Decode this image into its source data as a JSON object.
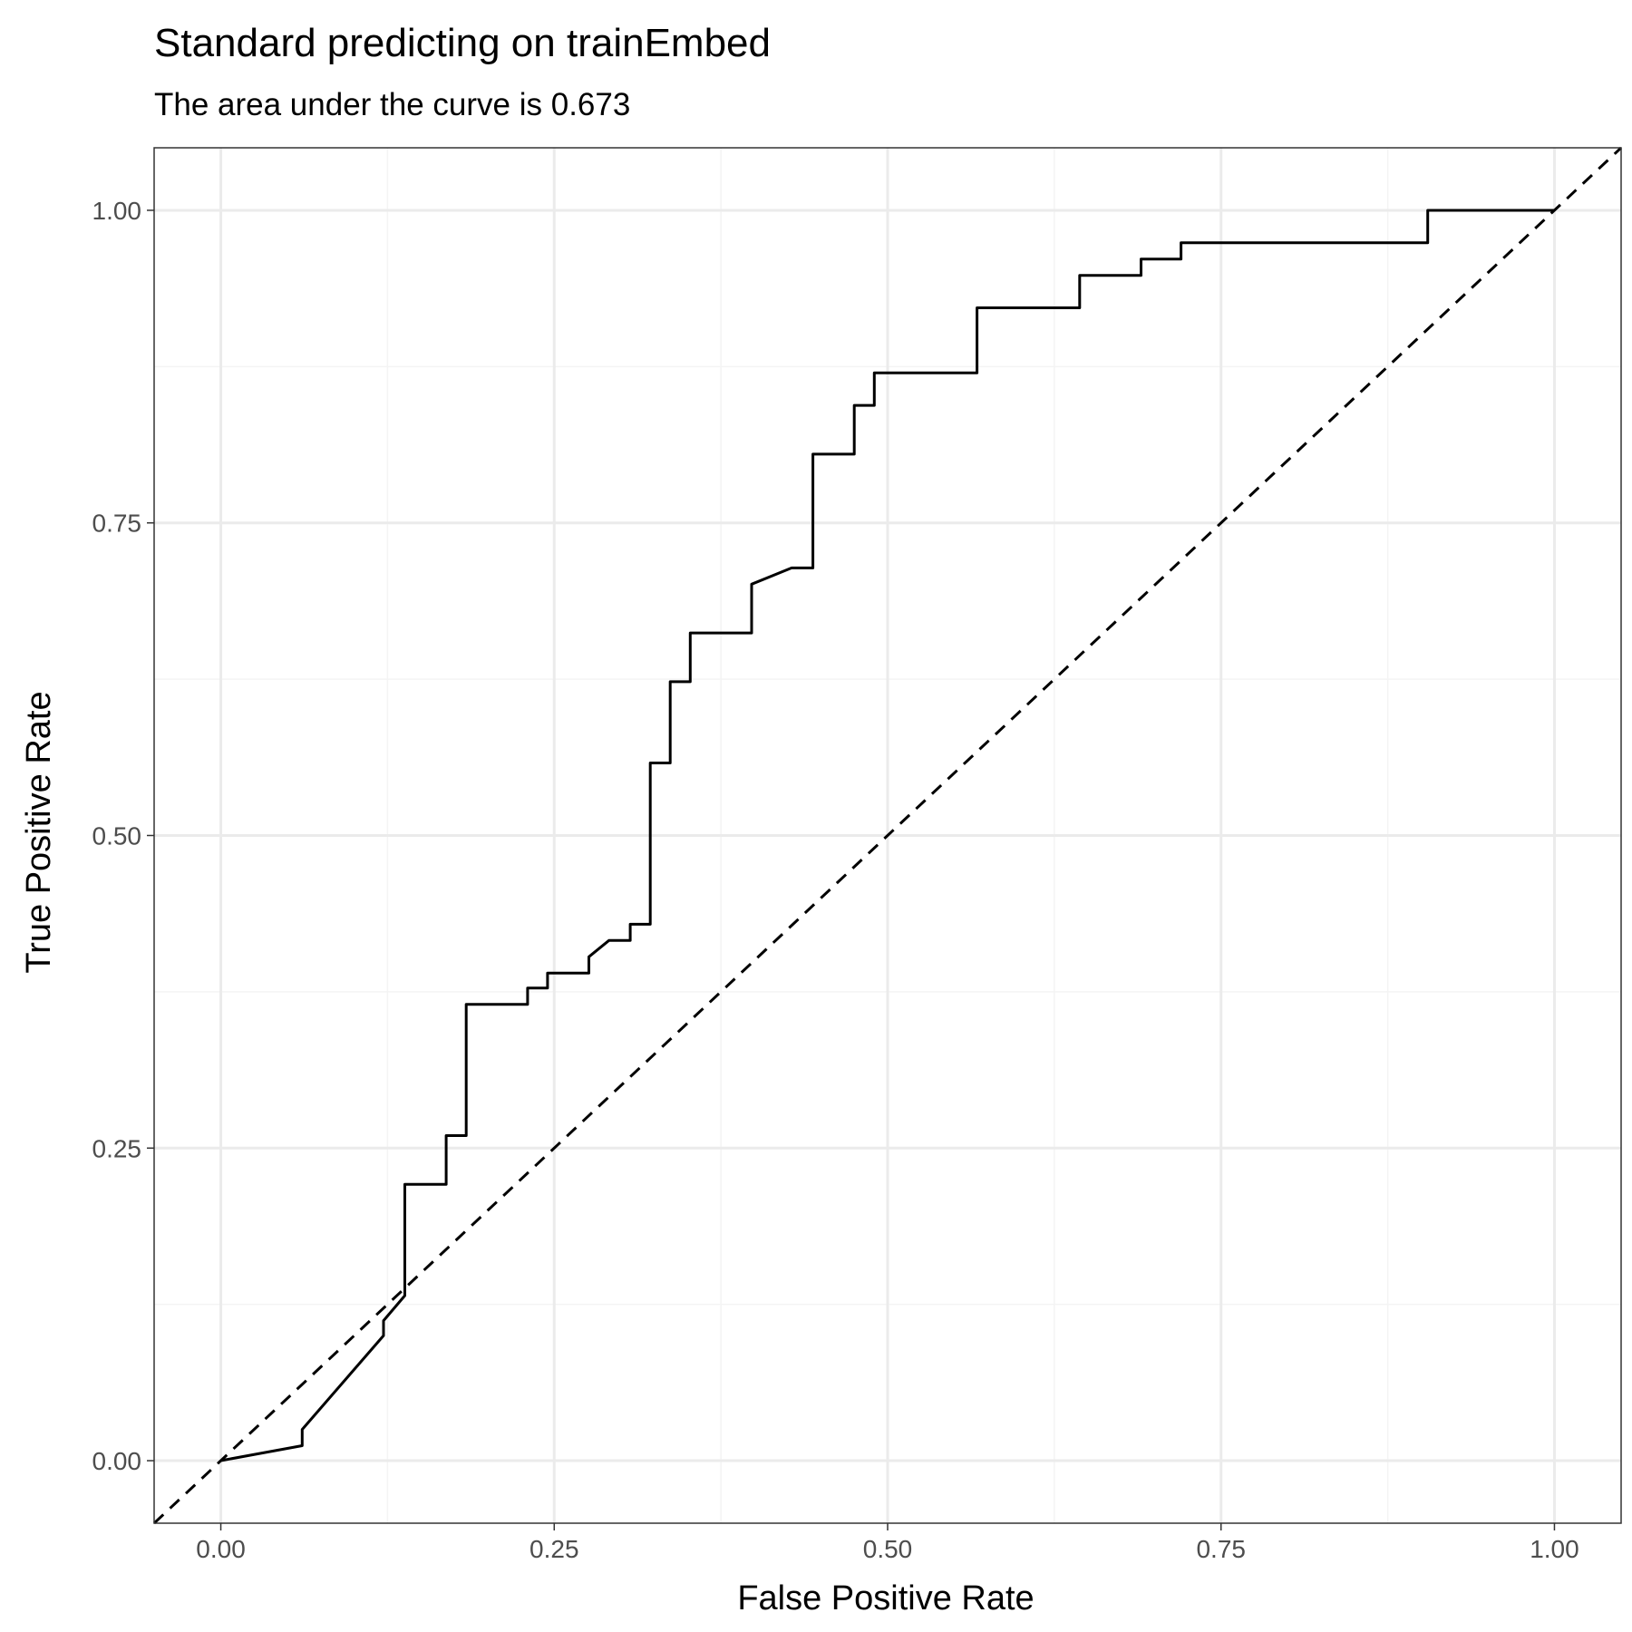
{
  "chart_data": {
    "type": "line",
    "title": "Standard predicting on trainEmbed",
    "subtitle": "The area under the curve is 0.673",
    "xlabel": "False Positive Rate",
    "ylabel": "True Positive Rate",
    "xlim": [
      -0.05,
      1.05
    ],
    "ylim": [
      -0.05,
      1.05
    ],
    "x_ticks": [
      0.0,
      0.25,
      0.5,
      0.75,
      1.0
    ],
    "y_ticks": [
      0.0,
      0.25,
      0.5,
      0.75,
      1.0
    ],
    "x_tick_labels": [
      "0.00",
      "0.25",
      "0.50",
      "0.75",
      "1.00"
    ],
    "y_tick_labels": [
      "0.00",
      "0.25",
      "0.50",
      "0.75",
      "1.00"
    ],
    "grid": true,
    "theme_colors": {
      "background": "#ffffff",
      "grid_major": "#ebebeb",
      "grid_minor": "#f4f4f4",
      "panel_border": "#333333",
      "line": "#000000",
      "tick_text": "#4d4d4d"
    },
    "series": [
      {
        "style": "solid",
        "points": [
          [
            0.0,
            0.0
          ],
          [
            0.061,
            0.012
          ],
          [
            0.061,
            0.025
          ],
          [
            0.122,
            0.1
          ],
          [
            0.122,
            0.112
          ],
          [
            0.138,
            0.132
          ],
          [
            0.138,
            0.221
          ],
          [
            0.169,
            0.221
          ],
          [
            0.169,
            0.26
          ],
          [
            0.184,
            0.26
          ],
          [
            0.184,
            0.365
          ],
          [
            0.23,
            0.365
          ],
          [
            0.23,
            0.378
          ],
          [
            0.245,
            0.378
          ],
          [
            0.245,
            0.39
          ],
          [
            0.276,
            0.39
          ],
          [
            0.276,
            0.403
          ],
          [
            0.291,
            0.416
          ],
          [
            0.307,
            0.416
          ],
          [
            0.307,
            0.429
          ],
          [
            0.322,
            0.429
          ],
          [
            0.322,
            0.558
          ],
          [
            0.337,
            0.558
          ],
          [
            0.337,
            0.623
          ],
          [
            0.352,
            0.623
          ],
          [
            0.352,
            0.662
          ],
          [
            0.398,
            0.662
          ],
          [
            0.398,
            0.701
          ],
          [
            0.428,
            0.714
          ],
          [
            0.444,
            0.714
          ],
          [
            0.444,
            0.805
          ],
          [
            0.475,
            0.805
          ],
          [
            0.475,
            0.844
          ],
          [
            0.49,
            0.844
          ],
          [
            0.49,
            0.87
          ],
          [
            0.567,
            0.87
          ],
          [
            0.567,
            0.922
          ],
          [
            0.644,
            0.922
          ],
          [
            0.644,
            0.948
          ],
          [
            0.69,
            0.948
          ],
          [
            0.69,
            0.961
          ],
          [
            0.72,
            0.961
          ],
          [
            0.72,
            0.974
          ],
          [
            0.905,
            0.974
          ],
          [
            0.905,
            1.0
          ],
          [
            1.0,
            1.0
          ]
        ]
      },
      {
        "style": "dashed",
        "points": [
          [
            -0.05,
            -0.05
          ],
          [
            1.05,
            1.05
          ]
        ]
      }
    ]
  }
}
